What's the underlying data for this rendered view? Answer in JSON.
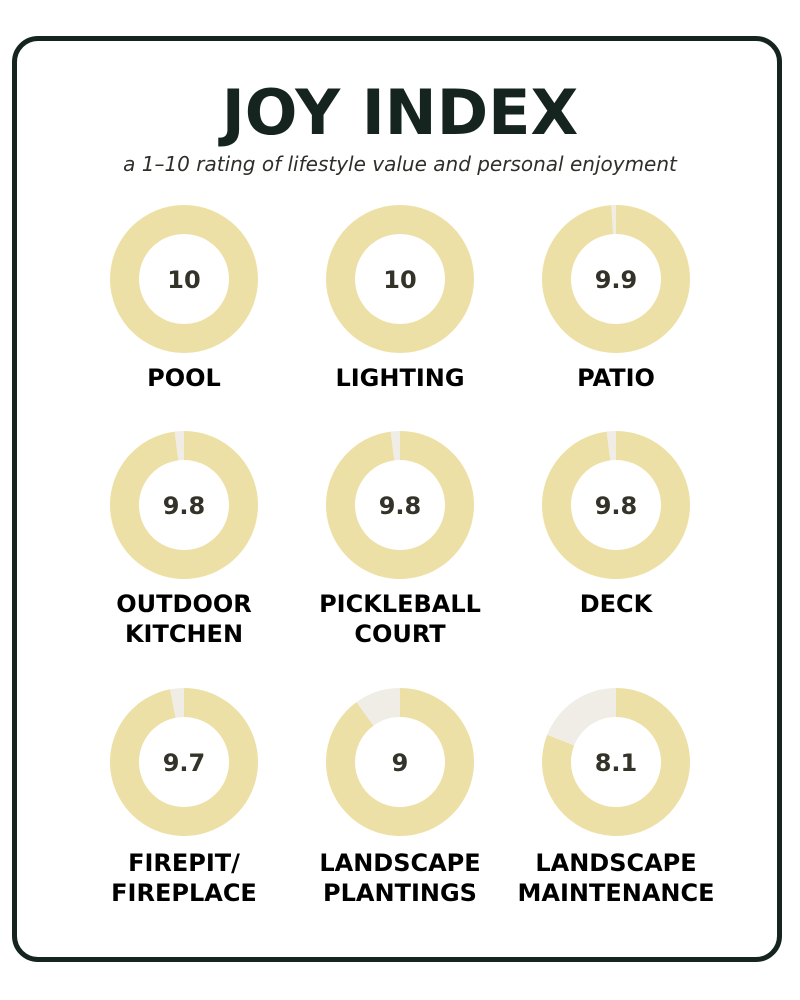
{
  "title": "JOY INDEX",
  "subtitle": "a 1–10 rating of lifestyle value and personal enjoyment",
  "colors": {
    "filled": "#ede0a6",
    "remaining": "#f0ede6",
    "text_dark": "#15241e"
  },
  "chart_data": {
    "type": "pie",
    "variant": "donut",
    "scale_max": 10,
    "items": [
      {
        "label_lines": [
          "POOL"
        ],
        "value": 10,
        "value_text": "10"
      },
      {
        "label_lines": [
          "LIGHTING"
        ],
        "value": 10,
        "value_text": "10"
      },
      {
        "label_lines": [
          "PATIO"
        ],
        "value": 9.9,
        "value_text": "9.9"
      },
      {
        "label_lines": [
          "OUTDOOR",
          "KITCHEN"
        ],
        "value": 9.8,
        "value_text": "9.8"
      },
      {
        "label_lines": [
          "PICKLEBALL",
          "COURT"
        ],
        "value": 9.8,
        "value_text": "9.8"
      },
      {
        "label_lines": [
          "DECK"
        ],
        "value": 9.8,
        "value_text": "9.8"
      },
      {
        "label_lines": [
          "FIREPIT/",
          "FIREPLACE"
        ],
        "value": 9.7,
        "value_text": "9.7"
      },
      {
        "label_lines": [
          "LANDSCAPE",
          "PLANTINGS"
        ],
        "value": 9,
        "value_text": "9"
      },
      {
        "label_lines": [
          "LANDSCAPE",
          "MAINTENANCE"
        ],
        "value": 8.1,
        "value_text": "8.1"
      }
    ]
  }
}
